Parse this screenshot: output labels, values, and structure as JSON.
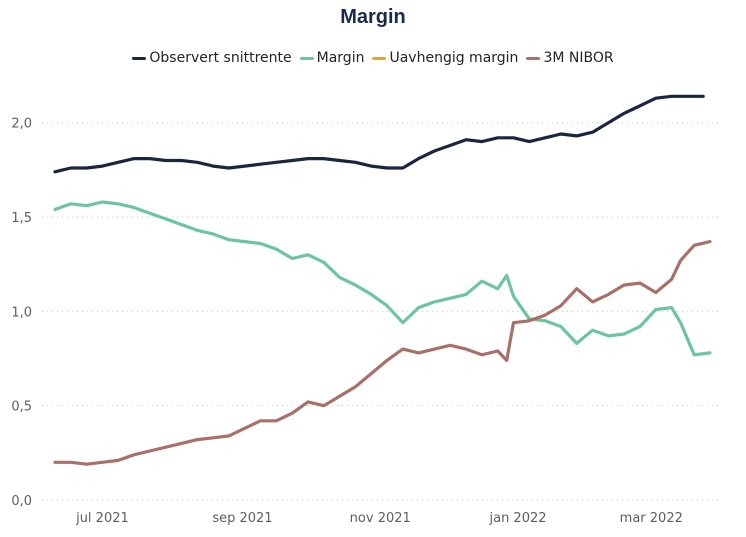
{
  "chart_data": {
    "type": "line",
    "title": "Margin",
    "xlabel": "",
    "ylabel": "",
    "ylim": [
      0,
      2.2
    ],
    "grid": "horizontal dotted",
    "legend_position": "top-center",
    "y_ticks": [
      {
        "value": 0.0,
        "label": "0,0"
      },
      {
        "value": 0.5,
        "label": "0,5"
      },
      {
        "value": 1.0,
        "label": "1,0"
      },
      {
        "value": 1.5,
        "label": "1,5"
      },
      {
        "value": 2.0,
        "label": "2,0"
      }
    ],
    "x_range": [
      "2021-06-10",
      "2022-03-27"
    ],
    "x_ticks": [
      {
        "date": "2021-07-01",
        "label": "jul 2021"
      },
      {
        "date": "2021-09-01",
        "label": "sep 2021"
      },
      {
        "date": "2021-11-01",
        "label": "nov 2021"
      },
      {
        "date": "2022-01-01",
        "label": "jan 2022"
      },
      {
        "date": "2022-03-01",
        "label": "mar 2022"
      }
    ],
    "series": [
      {
        "name": "Observert snittrente",
        "color": "#1a2540",
        "points": [
          [
            "2021-06-10",
            1.74
          ],
          [
            "2021-06-17",
            1.76
          ],
          [
            "2021-06-24",
            1.76
          ],
          [
            "2021-07-01",
            1.77
          ],
          [
            "2021-07-08",
            1.79
          ],
          [
            "2021-07-15",
            1.81
          ],
          [
            "2021-07-22",
            1.81
          ],
          [
            "2021-07-29",
            1.8
          ],
          [
            "2021-08-05",
            1.8
          ],
          [
            "2021-08-12",
            1.79
          ],
          [
            "2021-08-19",
            1.77
          ],
          [
            "2021-08-26",
            1.76
          ],
          [
            "2021-09-02",
            1.77
          ],
          [
            "2021-09-09",
            1.78
          ],
          [
            "2021-09-16",
            1.79
          ],
          [
            "2021-09-23",
            1.8
          ],
          [
            "2021-09-30",
            1.81
          ],
          [
            "2021-10-07",
            1.81
          ],
          [
            "2021-10-14",
            1.8
          ],
          [
            "2021-10-21",
            1.79
          ],
          [
            "2021-10-28",
            1.77
          ],
          [
            "2021-11-04",
            1.76
          ],
          [
            "2021-11-11",
            1.76
          ],
          [
            "2021-11-18",
            1.81
          ],
          [
            "2021-11-25",
            1.85
          ],
          [
            "2021-12-02",
            1.88
          ],
          [
            "2021-12-09",
            1.91
          ],
          [
            "2021-12-16",
            1.9
          ],
          [
            "2021-12-23",
            1.92
          ],
          [
            "2021-12-30",
            1.92
          ],
          [
            "2022-01-06",
            1.9
          ],
          [
            "2022-01-13",
            1.92
          ],
          [
            "2022-01-20",
            1.94
          ],
          [
            "2022-01-27",
            1.93
          ],
          [
            "2022-02-03",
            1.95
          ],
          [
            "2022-02-10",
            2.0
          ],
          [
            "2022-02-17",
            2.05
          ],
          [
            "2022-02-24",
            2.09
          ],
          [
            "2022-03-03",
            2.13
          ],
          [
            "2022-03-10",
            2.14
          ],
          [
            "2022-03-17",
            2.14
          ],
          [
            "2022-03-24",
            2.14
          ]
        ]
      },
      {
        "name": "Margin",
        "color": "#6cc4a0",
        "points": [
          [
            "2021-06-10",
            1.54
          ],
          [
            "2021-06-17",
            1.57
          ],
          [
            "2021-06-24",
            1.56
          ],
          [
            "2021-07-01",
            1.58
          ],
          [
            "2021-07-08",
            1.57
          ],
          [
            "2021-07-15",
            1.55
          ],
          [
            "2021-07-22",
            1.52
          ],
          [
            "2021-07-29",
            1.49
          ],
          [
            "2021-08-05",
            1.46
          ],
          [
            "2021-08-12",
            1.43
          ],
          [
            "2021-08-19",
            1.41
          ],
          [
            "2021-08-26",
            1.38
          ],
          [
            "2021-09-02",
            1.37
          ],
          [
            "2021-09-09",
            1.36
          ],
          [
            "2021-09-16",
            1.33
          ],
          [
            "2021-09-23",
            1.28
          ],
          [
            "2021-09-30",
            1.3
          ],
          [
            "2021-10-07",
            1.26
          ],
          [
            "2021-10-14",
            1.18
          ],
          [
            "2021-10-21",
            1.14
          ],
          [
            "2021-10-28",
            1.09
          ],
          [
            "2021-11-04",
            1.03
          ],
          [
            "2021-11-11",
            0.94
          ],
          [
            "2021-11-18",
            1.02
          ],
          [
            "2021-11-25",
            1.05
          ],
          [
            "2021-12-02",
            1.07
          ],
          [
            "2021-12-09",
            1.09
          ],
          [
            "2021-12-16",
            1.16
          ],
          [
            "2021-12-23",
            1.12
          ],
          [
            "2021-12-27",
            1.19
          ],
          [
            "2021-12-30",
            1.08
          ],
          [
            "2022-01-06",
            0.96
          ],
          [
            "2022-01-13",
            0.95
          ],
          [
            "2022-01-20",
            0.92
          ],
          [
            "2022-01-27",
            0.83
          ],
          [
            "2022-02-03",
            0.9
          ],
          [
            "2022-02-10",
            0.87
          ],
          [
            "2022-02-17",
            0.88
          ],
          [
            "2022-02-24",
            0.92
          ],
          [
            "2022-03-03",
            1.01
          ],
          [
            "2022-03-10",
            1.02
          ],
          [
            "2022-03-14",
            0.94
          ],
          [
            "2022-03-20",
            0.77
          ],
          [
            "2022-03-27",
            0.78
          ]
        ]
      },
      {
        "name": "Uavhengig margin",
        "color": "#e0a83a",
        "points": []
      },
      {
        "name": "3M NIBOR",
        "color": "#a87068",
        "points": [
          [
            "2021-06-10",
            0.2
          ],
          [
            "2021-06-17",
            0.2
          ],
          [
            "2021-06-24",
            0.19
          ],
          [
            "2021-07-01",
            0.2
          ],
          [
            "2021-07-08",
            0.21
          ],
          [
            "2021-07-15",
            0.24
          ],
          [
            "2021-07-22",
            0.26
          ],
          [
            "2021-07-29",
            0.28
          ],
          [
            "2021-08-05",
            0.3
          ],
          [
            "2021-08-12",
            0.32
          ],
          [
            "2021-08-19",
            0.33
          ],
          [
            "2021-08-26",
            0.34
          ],
          [
            "2021-09-02",
            0.38
          ],
          [
            "2021-09-09",
            0.42
          ],
          [
            "2021-09-16",
            0.42
          ],
          [
            "2021-09-23",
            0.46
          ],
          [
            "2021-09-30",
            0.52
          ],
          [
            "2021-10-07",
            0.5
          ],
          [
            "2021-10-14",
            0.55
          ],
          [
            "2021-10-21",
            0.6
          ],
          [
            "2021-10-28",
            0.67
          ],
          [
            "2021-11-04",
            0.74
          ],
          [
            "2021-11-11",
            0.8
          ],
          [
            "2021-11-18",
            0.78
          ],
          [
            "2021-11-25",
            0.8
          ],
          [
            "2021-12-02",
            0.82
          ],
          [
            "2021-12-09",
            0.8
          ],
          [
            "2021-12-16",
            0.77
          ],
          [
            "2021-12-23",
            0.79
          ],
          [
            "2021-12-27",
            0.74
          ],
          [
            "2021-12-30",
            0.94
          ],
          [
            "2022-01-06",
            0.95
          ],
          [
            "2022-01-13",
            0.98
          ],
          [
            "2022-01-20",
            1.03
          ],
          [
            "2022-01-27",
            1.12
          ],
          [
            "2022-02-03",
            1.05
          ],
          [
            "2022-02-10",
            1.09
          ],
          [
            "2022-02-17",
            1.14
          ],
          [
            "2022-02-24",
            1.15
          ],
          [
            "2022-03-03",
            1.1
          ],
          [
            "2022-03-10",
            1.17
          ],
          [
            "2022-03-14",
            1.27
          ],
          [
            "2022-03-20",
            1.35
          ],
          [
            "2022-03-27",
            1.37
          ]
        ]
      }
    ]
  }
}
